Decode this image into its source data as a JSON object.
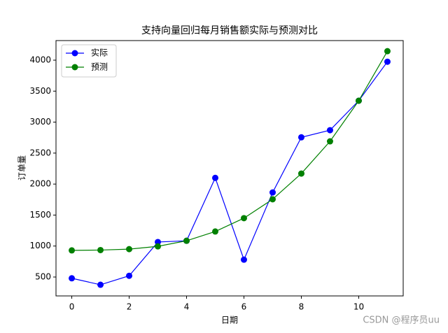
{
  "chart_data": {
    "type": "line",
    "title": "支持向量回归每月销售额实际与预测对比",
    "x_label": "日期",
    "y_label": "订单量",
    "x": [
      0,
      1,
      2,
      3,
      4,
      5,
      6,
      7,
      8,
      9,
      10,
      11
    ],
    "series": [
      {
        "name": "实际",
        "color": "#0000ff",
        "values": [
          480,
          375,
          520,
          1065,
          1085,
          2100,
          780,
          1865,
          2755,
          2870,
          3345,
          3975
        ]
      },
      {
        "name": "预测",
        "color": "#008000",
        "values": [
          930,
          935,
          950,
          995,
          1085,
          1235,
          1450,
          1755,
          2170,
          2690,
          3345,
          4145
        ]
      }
    ],
    "xlim": [
      -0.55,
      11.55
    ],
    "xticks": [
      0,
      2,
      4,
      6,
      8,
      10
    ],
    "ylim": [
      195,
      4316
    ],
    "yticks": [
      500,
      1000,
      1500,
      2000,
      2500,
      3000,
      3500,
      4000
    ],
    "legend": "upper-left",
    "watermark": "CSDN @程序员uu"
  }
}
